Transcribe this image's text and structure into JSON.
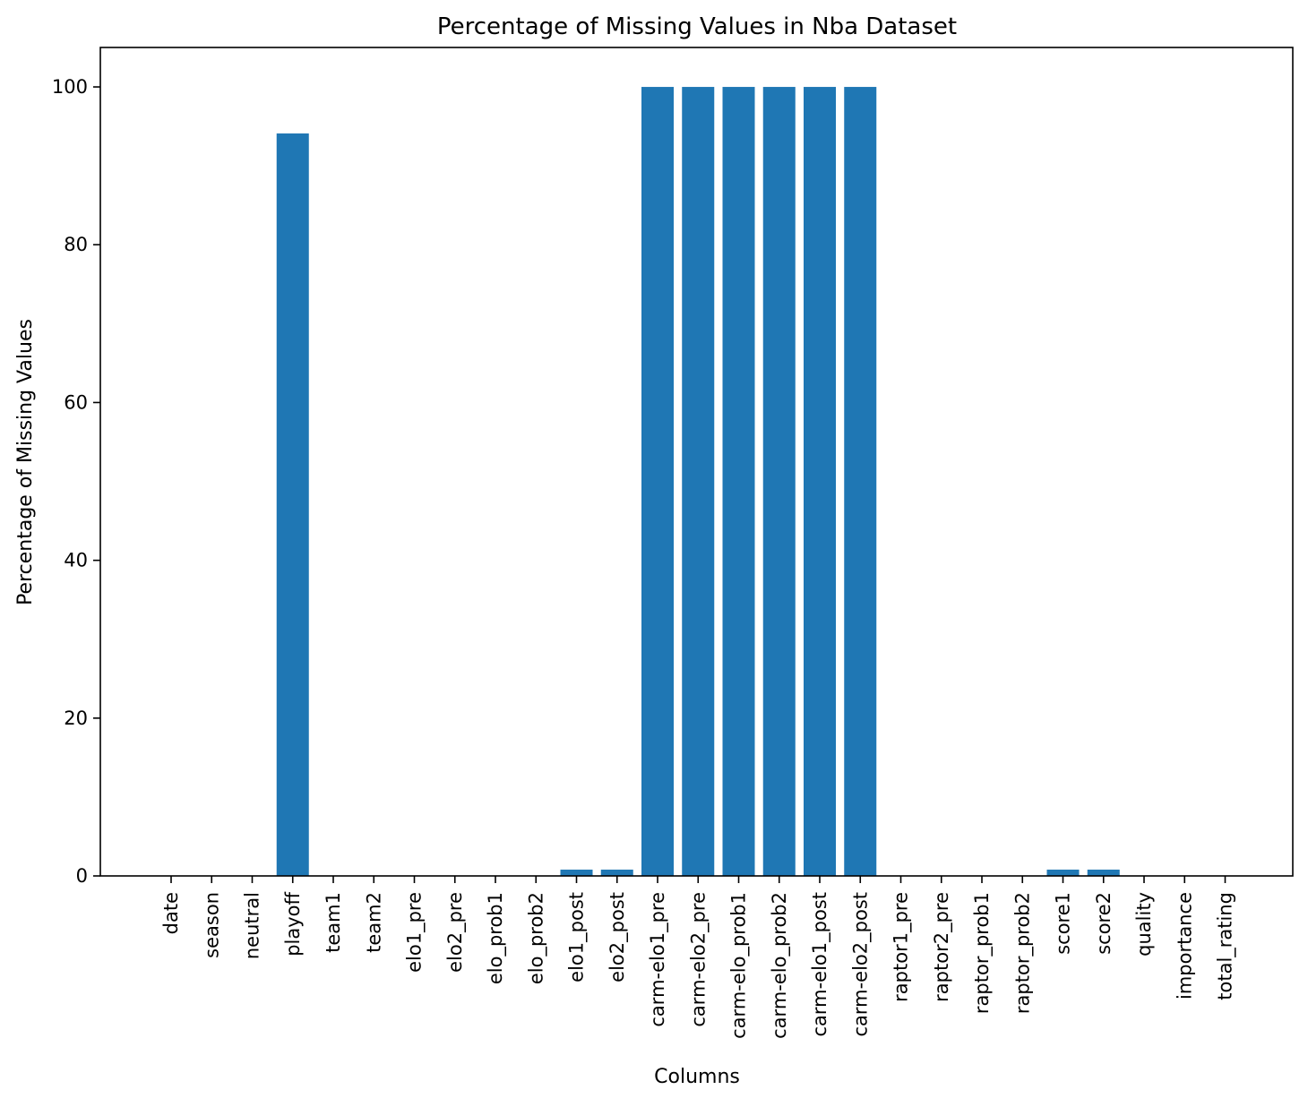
{
  "chart_data": {
    "type": "bar",
    "title": "Percentage of Missing Values in Nba Dataset",
    "xlabel": "Columns",
    "ylabel": "Percentage of Missing Values",
    "ylim": [
      0,
      105
    ],
    "yticks": [
      0,
      20,
      40,
      60,
      80,
      100
    ],
    "categories": [
      "date",
      "season",
      "neutral",
      "playoff",
      "team1",
      "team2",
      "elo1_pre",
      "elo2_pre",
      "elo_prob1",
      "elo_prob2",
      "elo1_post",
      "elo2_post",
      "carm-elo1_pre",
      "carm-elo2_pre",
      "carm-elo_prob1",
      "carm-elo_prob2",
      "carm-elo1_post",
      "carm-elo2_post",
      "raptor1_pre",
      "raptor2_pre",
      "raptor_prob1",
      "raptor_prob2",
      "score1",
      "score2",
      "quality",
      "importance",
      "total_rating"
    ],
    "values": [
      0,
      0,
      0,
      94.1,
      0,
      0,
      0,
      0,
      0,
      0,
      0.8,
      0.8,
      100,
      100,
      100,
      100,
      100,
      100,
      0,
      0,
      0,
      0,
      0.8,
      0.8,
      0,
      0,
      0
    ],
    "bar_color": "#1f77b4",
    "grid": false,
    "legend": "none"
  }
}
